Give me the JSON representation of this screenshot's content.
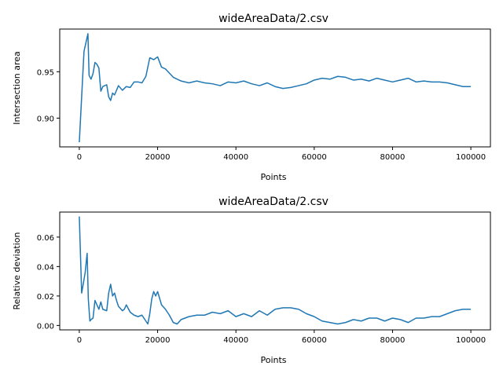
{
  "chart_data": [
    {
      "type": "line",
      "title": "wideAreaData/2.csv",
      "xlabel": "Points",
      "ylabel": "Intersection area",
      "xlim": [
        -5000,
        105000
      ],
      "ylim": [
        0.869,
        0.996
      ],
      "xticks": [
        0,
        20000,
        40000,
        60000,
        80000,
        100000
      ],
      "xtick_labels": [
        "0",
        "20000",
        "40000",
        "60000",
        "80000",
        "100000"
      ],
      "yticks": [
        0.9,
        0.95
      ],
      "ytick_labels": [
        "0.90",
        "0.95"
      ],
      "grid": false,
      "series": [
        {
          "color": "#1f77b4",
          "x": [
            0,
            1200,
            2200,
            2500,
            3000,
            3500,
            4000,
            4500,
            5000,
            5500,
            6000,
            7000,
            7500,
            8000,
            8500,
            9000,
            10000,
            11000,
            12000,
            13000,
            14000,
            15000,
            16000,
            17000,
            18000,
            19000,
            20000,
            21000,
            22000,
            24000,
            26000,
            28000,
            30000,
            32000,
            34000,
            36000,
            38000,
            40000,
            42000,
            44000,
            46000,
            48000,
            50000,
            52000,
            54000,
            56000,
            58000,
            60000,
            62000,
            64000,
            66000,
            68000,
            70000,
            72000,
            74000,
            76000,
            78000,
            80000,
            82000,
            84000,
            86000,
            88000,
            90000,
            92000,
            94000,
            96000,
            98000,
            100000
          ],
          "values": [
            0.874,
            0.972,
            0.991,
            0.946,
            0.942,
            0.948,
            0.96,
            0.958,
            0.954,
            0.929,
            0.934,
            0.936,
            0.923,
            0.919,
            0.927,
            0.925,
            0.935,
            0.93,
            0.934,
            0.933,
            0.939,
            0.939,
            0.938,
            0.945,
            0.965,
            0.963,
            0.966,
            0.955,
            0.953,
            0.944,
            0.94,
            0.938,
            0.94,
            0.938,
            0.937,
            0.935,
            0.939,
            0.938,
            0.94,
            0.937,
            0.935,
            0.938,
            0.934,
            0.932,
            0.933,
            0.935,
            0.937,
            0.941,
            0.943,
            0.942,
            0.945,
            0.944,
            0.941,
            0.942,
            0.94,
            0.943,
            0.941,
            0.939,
            0.941,
            0.943,
            0.939,
            0.94,
            0.939,
            0.939,
            0.938,
            0.936,
            0.934,
            0.934
          ]
        }
      ]
    },
    {
      "type": "line",
      "title": "wideAreaData/2.csv",
      "xlabel": "Points",
      "ylabel": "Relative deviation",
      "xlim": [
        -5000,
        105000
      ],
      "ylim": [
        -0.003,
        0.077
      ],
      "xticks": [
        0,
        20000,
        40000,
        60000,
        80000,
        100000
      ],
      "xtick_labels": [
        "0",
        "20000",
        "40000",
        "60000",
        "80000",
        "100000"
      ],
      "yticks": [
        0.0,
        0.02,
        0.04,
        0.06
      ],
      "ytick_labels": [
        "0.00",
        "0.02",
        "0.04",
        "0.06"
      ],
      "grid": false,
      "series": [
        {
          "color": "#1f77b4",
          "x": [
            0,
            600,
            1000,
            1500,
            2000,
            2300,
            2700,
            3000,
            3500,
            4000,
            4500,
            5000,
            5500,
            6000,
            7000,
            7500,
            8000,
            8500,
            9000,
            9500,
            10000,
            11000,
            11500,
            12000,
            13000,
            14000,
            15000,
            16000,
            17000,
            17500,
            18000,
            18500,
            19000,
            19500,
            20000,
            21000,
            22000,
            23000,
            24000,
            25000,
            26000,
            28000,
            30000,
            32000,
            34000,
            36000,
            38000,
            40000,
            42000,
            44000,
            46000,
            48000,
            50000,
            52000,
            54000,
            56000,
            58000,
            60000,
            62000,
            64000,
            66000,
            68000,
            70000,
            72000,
            74000,
            76000,
            78000,
            80000,
            82000,
            84000,
            86000,
            88000,
            90000,
            92000,
            94000,
            96000,
            98000,
            100000
          ],
          "values": [
            0.074,
            0.022,
            0.028,
            0.036,
            0.049,
            0.018,
            0.003,
            0.004,
            0.005,
            0.017,
            0.014,
            0.011,
            0.016,
            0.011,
            0.01,
            0.022,
            0.028,
            0.02,
            0.022,
            0.017,
            0.013,
            0.01,
            0.011,
            0.014,
            0.009,
            0.007,
            0.006,
            0.007,
            0.003,
            0.001,
            0.008,
            0.018,
            0.023,
            0.02,
            0.023,
            0.014,
            0.011,
            0.007,
            0.002,
            0.001,
            0.004,
            0.006,
            0.007,
            0.007,
            0.009,
            0.008,
            0.01,
            0.006,
            0.008,
            0.006,
            0.01,
            0.007,
            0.011,
            0.012,
            0.012,
            0.011,
            0.008,
            0.006,
            0.003,
            0.002,
            0.001,
            0.002,
            0.004,
            0.003,
            0.005,
            0.005,
            0.003,
            0.005,
            0.004,
            0.002,
            0.005,
            0.005,
            0.006,
            0.006,
            0.008,
            0.01,
            0.011,
            0.011
          ]
        }
      ]
    }
  ]
}
